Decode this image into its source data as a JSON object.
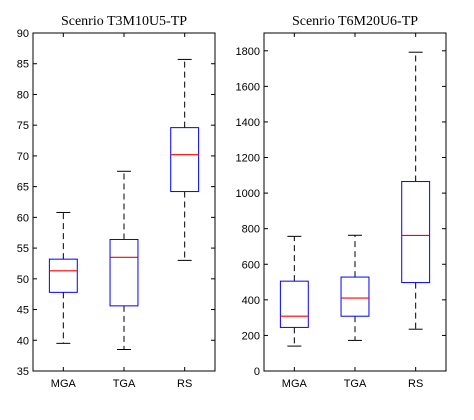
{
  "chart_data": [
    {
      "type": "box",
      "title": "Scenrio T3M10U5-TP",
      "xlabel": "",
      "ylabel": "",
      "ylim": [
        35,
        90
      ],
      "yticks": [
        35,
        40,
        45,
        50,
        55,
        60,
        65,
        70,
        75,
        80,
        85,
        90
      ],
      "categories": [
        "MGA",
        "TGA",
        "RS"
      ],
      "boxes": [
        {
          "category": "MGA",
          "whisker_low": 39.5,
          "q1": 47.8,
          "median": 51.3,
          "q3": 53.2,
          "whisker_high": 60.8
        },
        {
          "category": "TGA",
          "whisker_low": 38.5,
          "q1": 45.6,
          "median": 53.5,
          "q3": 56.4,
          "whisker_high": 67.5
        },
        {
          "category": "RS",
          "whisker_low": 53.0,
          "q1": 64.2,
          "median": 70.2,
          "q3": 74.6,
          "whisker_high": 85.7
        }
      ],
      "grid": false,
      "box_color": "#0000ff",
      "median_color": "#ff0000",
      "whisker_color": "#000000"
    },
    {
      "type": "box",
      "title": "Scenrio T6M20U6-TP",
      "xlabel": "",
      "ylabel": "",
      "ylim": [
        0,
        1900
      ],
      "yticks": [
        0,
        200,
        400,
        600,
        800,
        1000,
        1200,
        1400,
        1600,
        1800
      ],
      "categories": [
        "MGA",
        "TGA",
        "RS"
      ],
      "boxes": [
        {
          "category": "MGA",
          "whisker_low": 140,
          "q1": 245,
          "median": 308,
          "q3": 505,
          "whisker_high": 757
        },
        {
          "category": "TGA",
          "whisker_low": 172,
          "q1": 308,
          "median": 410,
          "q3": 528,
          "whisker_high": 763
        },
        {
          "category": "RS",
          "whisker_low": 235,
          "q1": 497,
          "median": 762,
          "q3": 1065,
          "whisker_high": 1792
        }
      ],
      "grid": false,
      "box_color": "#0000ff",
      "median_color": "#ff0000",
      "whisker_color": "#000000"
    }
  ]
}
